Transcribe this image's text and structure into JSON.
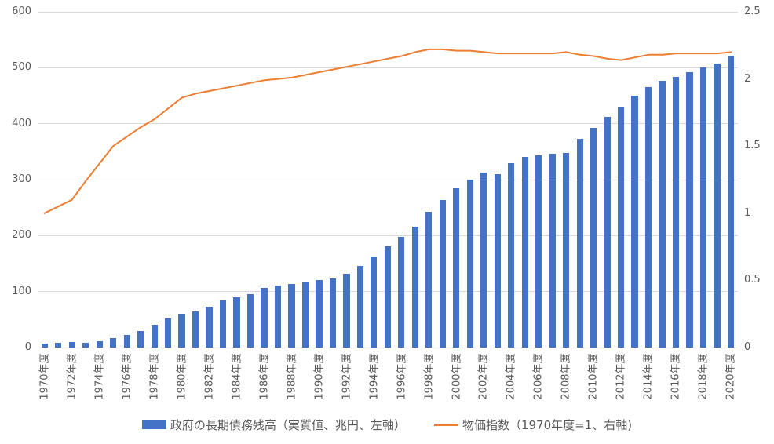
{
  "chart_data": {
    "type": "bar",
    "subtype": "combo-bar-line-dual-axis",
    "title": "",
    "x_year_start": 1970,
    "x_tick_suffix": "年度",
    "x_tick_labels": [
      "1970年度",
      "1972年度",
      "1974年度",
      "1976年度",
      "1978年度",
      "1980年度",
      "1982年度",
      "1984年度",
      "1986年度",
      "1988年度",
      "1990年度",
      "1992年度",
      "1994年度",
      "1996年度",
      "1998年度",
      "2000年度",
      "2002年度",
      "2004年度",
      "2006年度",
      "2008年度",
      "2010年度",
      "2012年度",
      "2014年度",
      "2016年度",
      "2018年度",
      "2020年度"
    ],
    "series": [
      {
        "name": "政府の長期債務残高（実質値、兆円、左軸）",
        "type": "bar",
        "axis": "left",
        "color": "#4472C4",
        "values": [
          7,
          8,
          10,
          9,
          11,
          17,
          23,
          30,
          41,
          52,
          60,
          65,
          73,
          84,
          90,
          96,
          106,
          111,
          113,
          117,
          120,
          123,
          132,
          146,
          163,
          181,
          198,
          216,
          242,
          264,
          285,
          300,
          312,
          310,
          330,
          341,
          344,
          346,
          348,
          373,
          393,
          412,
          430,
          450,
          465,
          477,
          484,
          492,
          500,
          508,
          521
        ]
      },
      {
        "name": "物価指数（1970年度=1、右軸)",
        "type": "line",
        "axis": "right",
        "color": "#ED7D31",
        "values": [
          1.0,
          1.05,
          1.1,
          1.24,
          1.37,
          1.5,
          1.57,
          1.64,
          1.7,
          1.78,
          1.86,
          1.89,
          1.91,
          1.93,
          1.95,
          1.97,
          1.99,
          2.0,
          2.01,
          2.03,
          2.05,
          2.07,
          2.09,
          2.11,
          2.13,
          2.15,
          2.17,
          2.2,
          2.22,
          2.22,
          2.21,
          2.21,
          2.2,
          2.19,
          2.19,
          2.19,
          2.19,
          2.19,
          2.2,
          2.18,
          2.17,
          2.15,
          2.14,
          2.16,
          2.18,
          2.18,
          2.19,
          2.19,
          2.19,
          2.19,
          2.2
        ]
      }
    ],
    "left_axis": {
      "min": 0,
      "max": 600,
      "step": 100,
      "tick_labels": [
        "0",
        "100",
        "200",
        "300",
        "400",
        "500",
        "600"
      ]
    },
    "right_axis": {
      "min": 0,
      "max": 2.5,
      "step": 0.5,
      "tick_labels": [
        "0",
        "0.5",
        "1",
        "1.5",
        "2",
        "2.5"
      ]
    },
    "grid": true,
    "gridline_color": "#d9d9d9",
    "legend_position": "bottom"
  }
}
